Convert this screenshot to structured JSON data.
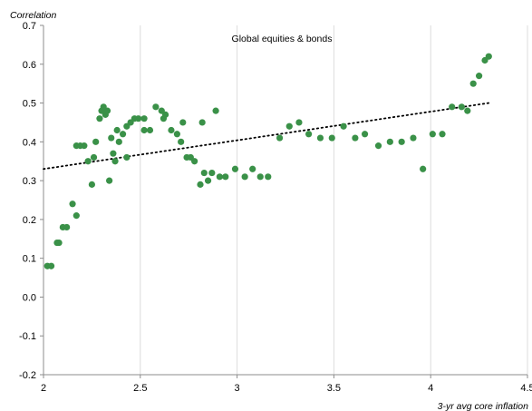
{
  "chart_data": {
    "type": "scatter",
    "title": "Global equities & bonds",
    "xlabel": "3-yr avg core inflation",
    "ylabel": "Correlation",
    "xlim": [
      2,
      4.5
    ],
    "ylim": [
      -0.2,
      0.7
    ],
    "xticks": [
      "2",
      "2.5",
      "3",
      "3.5",
      "4",
      "4.5"
    ],
    "yticks": [
      "0.7",
      "0.6",
      "0.5",
      "0.4",
      "0.3",
      "0.2",
      "0.1",
      "0.0",
      "-0.1",
      "-0.2"
    ],
    "grid": {
      "x": true,
      "y": false
    },
    "point_color": "#3a9148",
    "trendline": {
      "style": "dotted",
      "color": "#000000",
      "x": [
        2.0,
        4.3
      ],
      "y": [
        0.33,
        0.5
      ]
    },
    "points": [
      [
        2.02,
        0.08
      ],
      [
        2.04,
        0.08
      ],
      [
        2.07,
        0.14
      ],
      [
        2.08,
        0.14
      ],
      [
        2.1,
        0.18
      ],
      [
        2.12,
        0.18
      ],
      [
        2.15,
        0.24
      ],
      [
        2.17,
        0.21
      ],
      [
        2.17,
        0.39
      ],
      [
        2.19,
        0.39
      ],
      [
        2.21,
        0.39
      ],
      [
        2.23,
        0.35
      ],
      [
        2.25,
        0.29
      ],
      [
        2.26,
        0.36
      ],
      [
        2.27,
        0.4
      ],
      [
        2.29,
        0.46
      ],
      [
        2.3,
        0.48
      ],
      [
        2.31,
        0.49
      ],
      [
        2.32,
        0.47
      ],
      [
        2.33,
        0.48
      ],
      [
        2.34,
        0.3
      ],
      [
        2.35,
        0.41
      ],
      [
        2.36,
        0.37
      ],
      [
        2.37,
        0.35
      ],
      [
        2.38,
        0.43
      ],
      [
        2.39,
        0.4
      ],
      [
        2.41,
        0.42
      ],
      [
        2.43,
        0.44
      ],
      [
        2.43,
        0.36
      ],
      [
        2.45,
        0.45
      ],
      [
        2.47,
        0.46
      ],
      [
        2.49,
        0.46
      ],
      [
        2.52,
        0.46
      ],
      [
        2.52,
        0.43
      ],
      [
        2.55,
        0.43
      ],
      [
        2.58,
        0.49
      ],
      [
        2.61,
        0.48
      ],
      [
        2.62,
        0.46
      ],
      [
        2.63,
        0.47
      ],
      [
        2.66,
        0.43
      ],
      [
        2.69,
        0.42
      ],
      [
        2.71,
        0.4
      ],
      [
        2.72,
        0.45
      ],
      [
        2.74,
        0.36
      ],
      [
        2.76,
        0.36
      ],
      [
        2.78,
        0.35
      ],
      [
        2.81,
        0.29
      ],
      [
        2.82,
        0.45
      ],
      [
        2.83,
        0.32
      ],
      [
        2.85,
        0.3
      ],
      [
        2.87,
        0.32
      ],
      [
        2.89,
        0.48
      ],
      [
        2.91,
        0.31
      ],
      [
        2.94,
        0.31
      ],
      [
        2.99,
        0.33
      ],
      [
        3.04,
        0.31
      ],
      [
        3.08,
        0.33
      ],
      [
        3.12,
        0.31
      ],
      [
        3.16,
        0.31
      ],
      [
        3.22,
        0.41
      ],
      [
        3.27,
        0.44
      ],
      [
        3.32,
        0.45
      ],
      [
        3.37,
        0.42
      ],
      [
        3.43,
        0.41
      ],
      [
        3.49,
        0.41
      ],
      [
        3.55,
        0.44
      ],
      [
        3.61,
        0.41
      ],
      [
        3.66,
        0.42
      ],
      [
        3.73,
        0.39
      ],
      [
        3.79,
        0.4
      ],
      [
        3.85,
        0.4
      ],
      [
        3.91,
        0.41
      ],
      [
        3.96,
        0.33
      ],
      [
        4.01,
        0.42
      ],
      [
        4.06,
        0.42
      ],
      [
        4.11,
        0.49
      ],
      [
        4.16,
        0.49
      ],
      [
        4.19,
        0.48
      ],
      [
        4.22,
        0.55
      ],
      [
        4.25,
        0.57
      ],
      [
        4.28,
        0.61
      ],
      [
        4.3,
        0.62
      ]
    ]
  }
}
